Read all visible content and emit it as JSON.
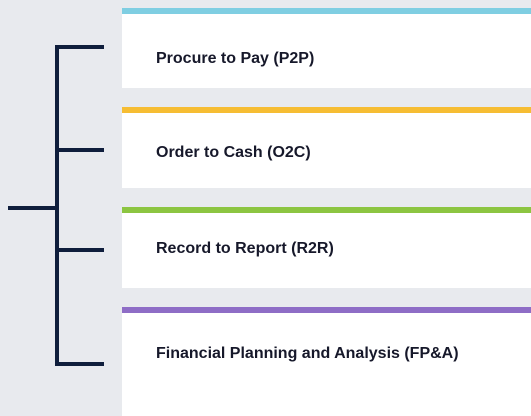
{
  "items": [
    {
      "label": "Procure to Pay (P2P)",
      "color": "#7fcee2"
    },
    {
      "label": "Order to Cash (O2C)",
      "color": "#f6bd33"
    },
    {
      "label": "Record to Report (R2R)",
      "color": "#8cc541"
    },
    {
      "label": "Financial Planning and Analysis (FP&A)",
      "color": "#8e6dc6"
    }
  ]
}
